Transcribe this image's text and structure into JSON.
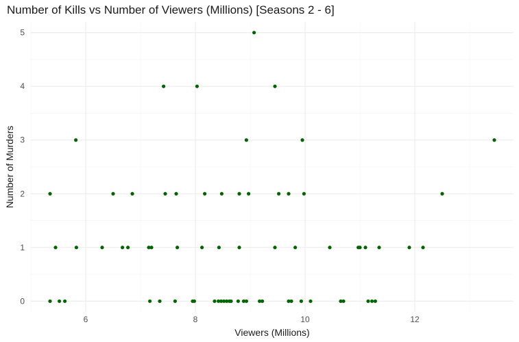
{
  "chart_data": {
    "type": "scatter",
    "title": "Number of Kills vs Number of Viewers (Millions) [Seasons 2 - 6]",
    "xlabel": "Viewers (Millions)",
    "ylabel": "Number of Murders",
    "xlim": [
      5.0,
      13.8
    ],
    "ylim": [
      -0.2,
      5.2
    ],
    "xticks": [
      6,
      8,
      10,
      12
    ],
    "yticks": [
      0,
      1,
      2,
      3,
      4,
      5
    ],
    "grid": true,
    "point_color": "#006400",
    "points": [
      {
        "x": 5.35,
        "y": 2
      },
      {
        "x": 5.82,
        "y": 3
      },
      {
        "x": 7.42,
        "y": 4
      },
      {
        "x": 8.03,
        "y": 4
      },
      {
        "x": 9.07,
        "y": 5
      },
      {
        "x": 9.45,
        "y": 4
      },
      {
        "x": 8.93,
        "y": 3
      },
      {
        "x": 9.95,
        "y": 3
      },
      {
        "x": 13.45,
        "y": 3
      },
      {
        "x": 6.5,
        "y": 2
      },
      {
        "x": 6.85,
        "y": 2
      },
      {
        "x": 7.45,
        "y": 2
      },
      {
        "x": 7.65,
        "y": 2
      },
      {
        "x": 8.17,
        "y": 2
      },
      {
        "x": 8.48,
        "y": 2
      },
      {
        "x": 8.8,
        "y": 2
      },
      {
        "x": 8.97,
        "y": 2
      },
      {
        "x": 9.52,
        "y": 2
      },
      {
        "x": 9.7,
        "y": 2
      },
      {
        "x": 9.98,
        "y": 2
      },
      {
        "x": 12.5,
        "y": 2
      },
      {
        "x": 5.45,
        "y": 1
      },
      {
        "x": 5.83,
        "y": 1
      },
      {
        "x": 6.3,
        "y": 1
      },
      {
        "x": 6.67,
        "y": 1
      },
      {
        "x": 6.77,
        "y": 1
      },
      {
        "x": 7.15,
        "y": 1
      },
      {
        "x": 7.2,
        "y": 1
      },
      {
        "x": 7.67,
        "y": 1
      },
      {
        "x": 8.12,
        "y": 1
      },
      {
        "x": 8.43,
        "y": 1
      },
      {
        "x": 8.8,
        "y": 1
      },
      {
        "x": 9.45,
        "y": 1
      },
      {
        "x": 9.82,
        "y": 1
      },
      {
        "x": 10.45,
        "y": 1
      },
      {
        "x": 10.97,
        "y": 1
      },
      {
        "x": 11.0,
        "y": 1
      },
      {
        "x": 11.1,
        "y": 1
      },
      {
        "x": 11.35,
        "y": 1
      },
      {
        "x": 11.9,
        "y": 1
      },
      {
        "x": 12.15,
        "y": 1
      },
      {
        "x": 5.35,
        "y": 0
      },
      {
        "x": 5.52,
        "y": 0
      },
      {
        "x": 5.62,
        "y": 0
      },
      {
        "x": 7.17,
        "y": 0
      },
      {
        "x": 7.35,
        "y": 0
      },
      {
        "x": 7.63,
        "y": 0
      },
      {
        "x": 7.95,
        "y": 0
      },
      {
        "x": 7.98,
        "y": 0
      },
      {
        "x": 8.35,
        "y": 0
      },
      {
        "x": 8.42,
        "y": 0
      },
      {
        "x": 8.47,
        "y": 0
      },
      {
        "x": 8.52,
        "y": 0
      },
      {
        "x": 8.57,
        "y": 0
      },
      {
        "x": 8.62,
        "y": 0
      },
      {
        "x": 8.65,
        "y": 0
      },
      {
        "x": 8.78,
        "y": 0
      },
      {
        "x": 8.88,
        "y": 0
      },
      {
        "x": 8.93,
        "y": 0
      },
      {
        "x": 9.17,
        "y": 0
      },
      {
        "x": 9.22,
        "y": 0
      },
      {
        "x": 9.7,
        "y": 0
      },
      {
        "x": 9.75,
        "y": 0
      },
      {
        "x": 9.93,
        "y": 0
      },
      {
        "x": 10.1,
        "y": 0
      },
      {
        "x": 10.65,
        "y": 0
      },
      {
        "x": 10.7,
        "y": 0
      },
      {
        "x": 11.15,
        "y": 0
      },
      {
        "x": 11.22,
        "y": 0
      },
      {
        "x": 11.28,
        "y": 0
      }
    ]
  }
}
